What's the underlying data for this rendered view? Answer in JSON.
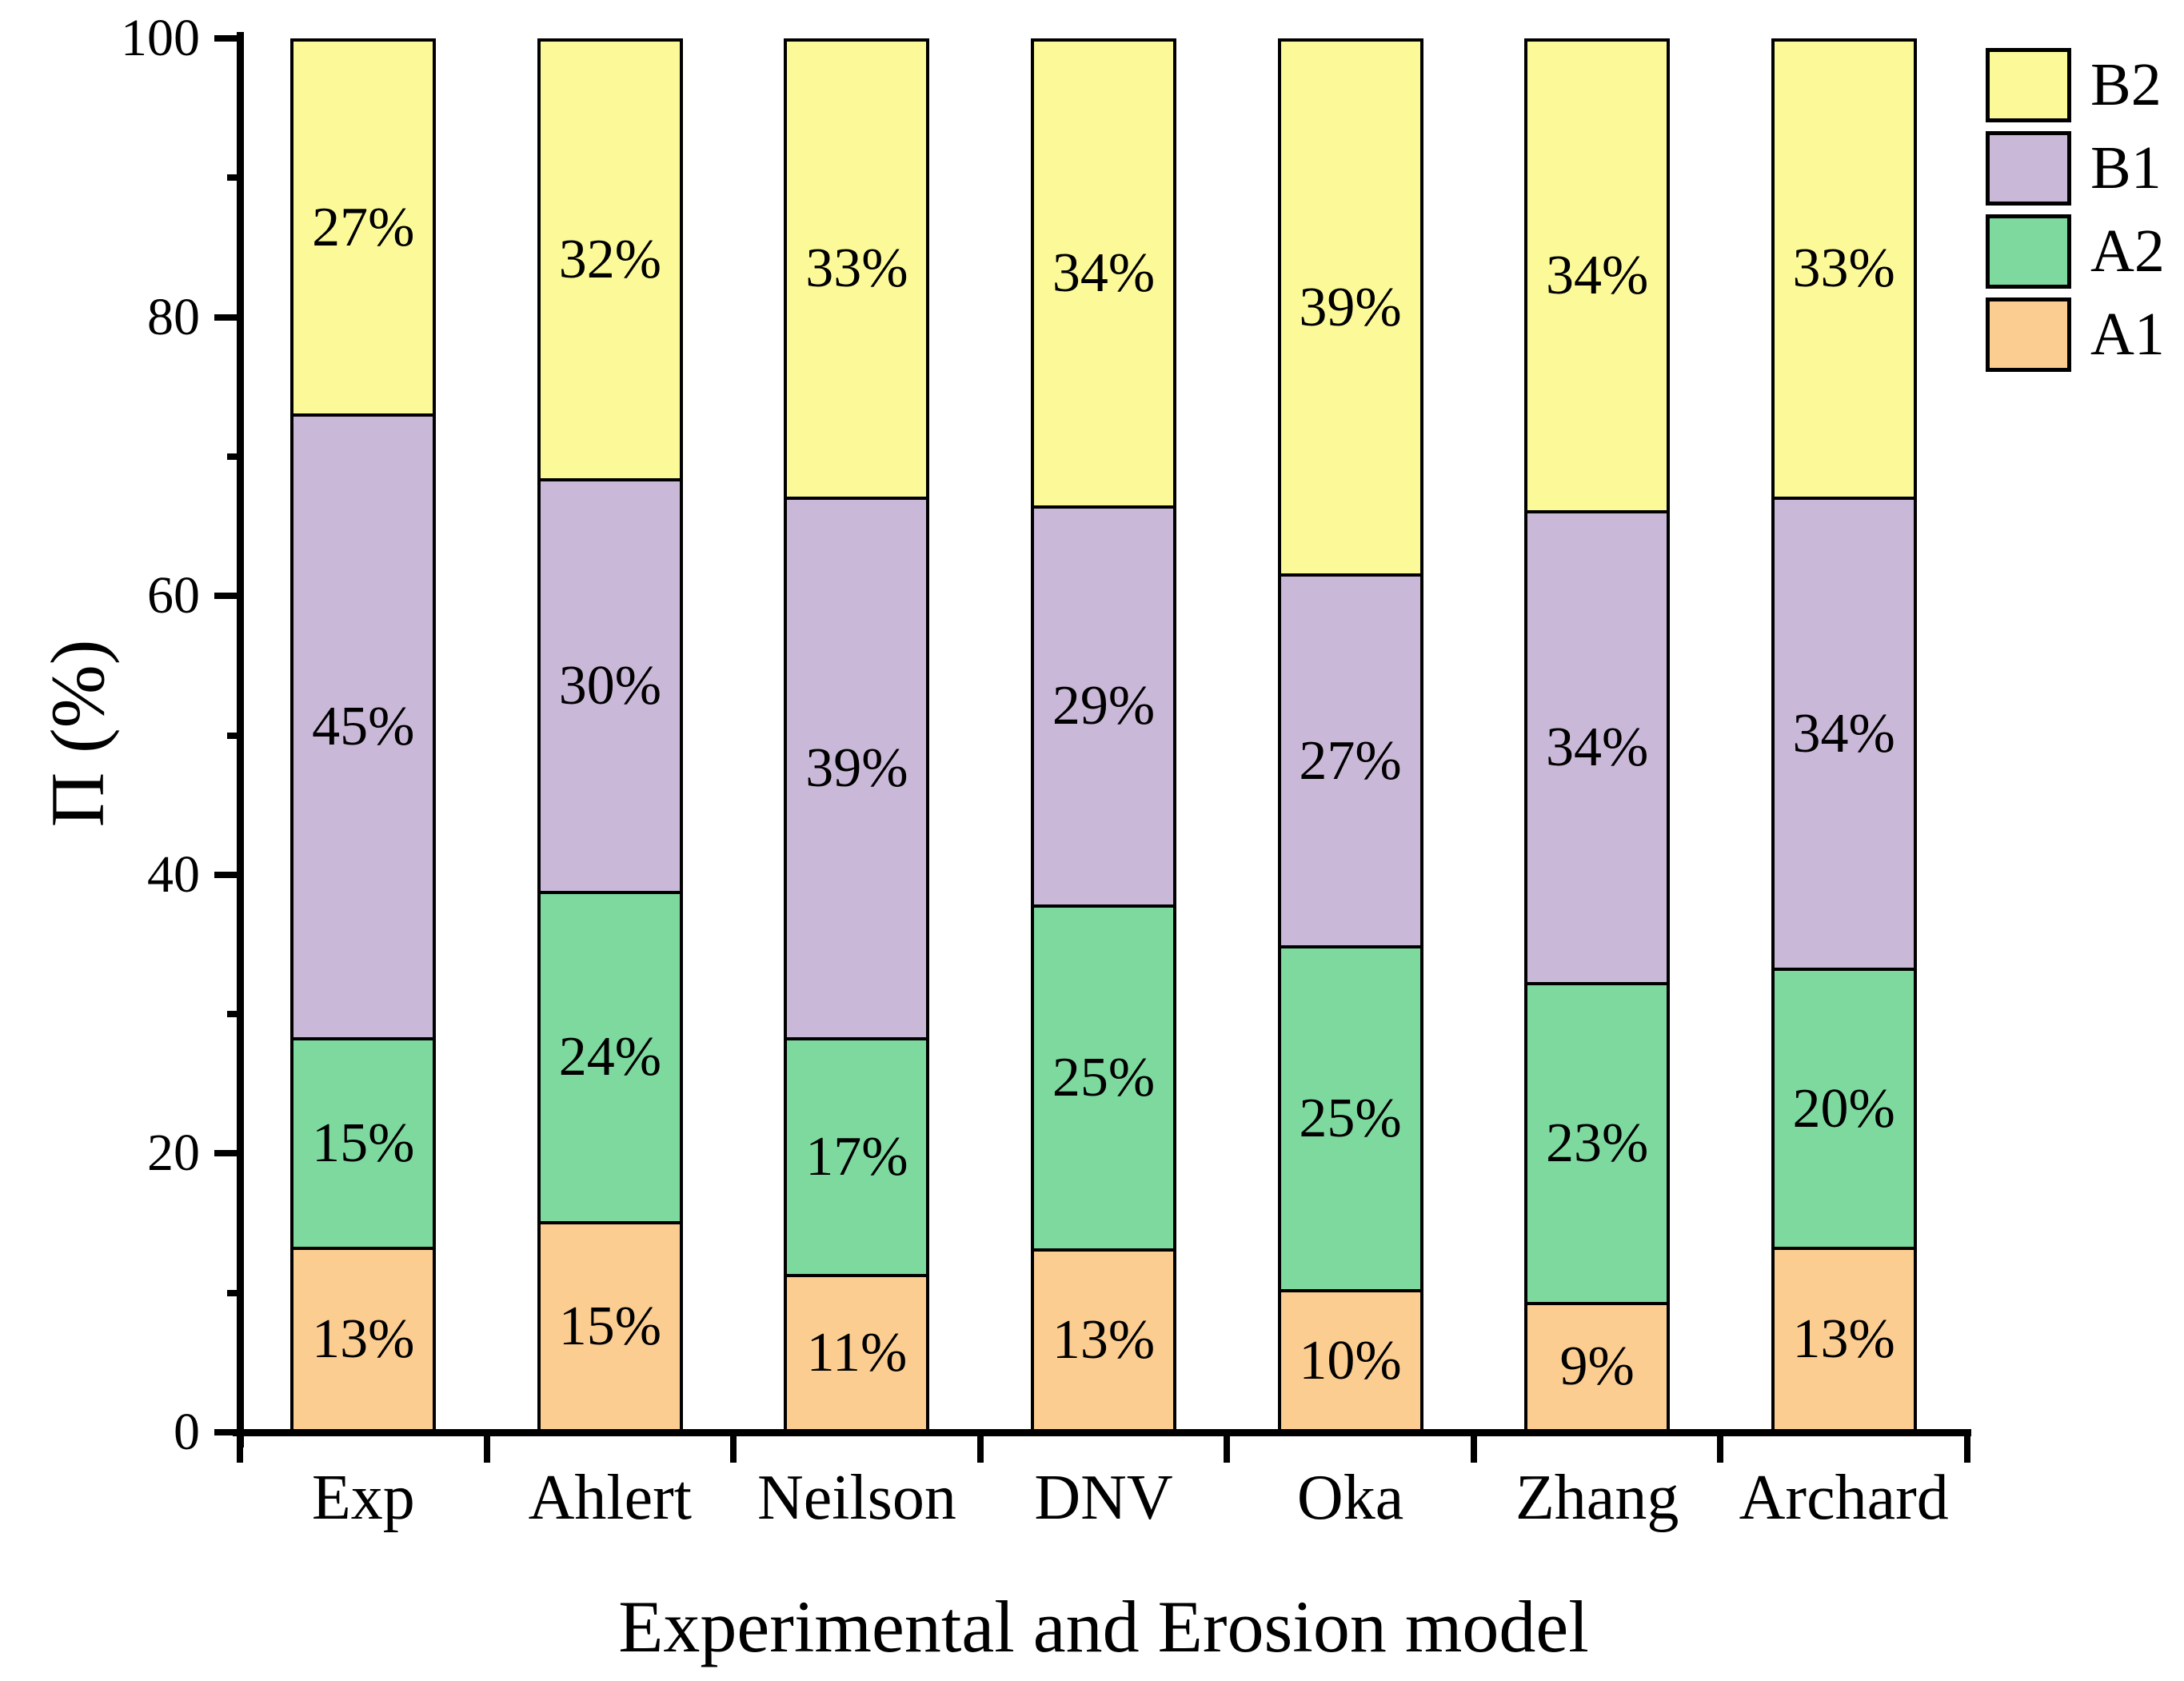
{
  "chart_data": {
    "type": "bar",
    "stacked": true,
    "orientation": "vertical",
    "title": "",
    "xlabel": "Experimental and Erosion model",
    "ylabel": "Π (%)",
    "categories": [
      "Exp",
      "Ahlert",
      "Neilson",
      "DNV",
      "Oka",
      "Zhang",
      "Archard"
    ],
    "series": [
      {
        "name": "A1",
        "color": "#FCCD91",
        "values": [
          13,
          15,
          11,
          13,
          10,
          9,
          13
        ]
      },
      {
        "name": "A2",
        "color": "#7ED99F",
        "values": [
          15,
          24,
          17,
          25,
          25,
          23,
          20
        ]
      },
      {
        "name": "B1",
        "color": "#CAB8D8",
        "values": [
          45,
          30,
          39,
          29,
          27,
          34,
          34
        ]
      },
      {
        "name": "B2",
        "color": "#FCFA98",
        "values": [
          27,
          32,
          33,
          34,
          39,
          34,
          33
        ]
      }
    ],
    "data_label_suffix": "%",
    "ylim": [
      0,
      100
    ],
    "yticks_major": [
      0,
      20,
      40,
      60,
      80,
      100
    ],
    "yticks_minor": [
      10,
      30,
      50,
      70,
      90
    ],
    "grid": false,
    "legend_position": "top-right-outside",
    "legend_order": [
      "B2",
      "B1",
      "A2",
      "A1"
    ],
    "axis_color": "#000000",
    "bar_border_color": "#000000",
    "text_color": "#000000"
  }
}
